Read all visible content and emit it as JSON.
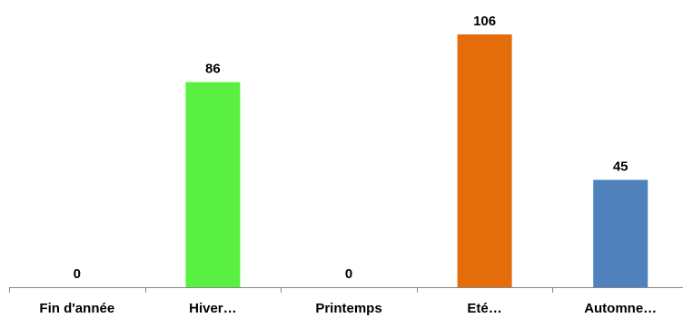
{
  "chart_data": {
    "type": "bar",
    "title": "",
    "xlabel": "",
    "ylabel": "",
    "categories": [
      "Fin d'année",
      "Hiver…",
      "Printemps",
      "Eté…",
      "Automne…"
    ],
    "values": [
      0,
      86,
      0,
      106,
      45
    ],
    "colors": [
      "#5b9bd5",
      "#5af042",
      "#5b9bd5",
      "#e46c0a",
      "#4f81bd"
    ],
    "data_labels": [
      "0",
      "86",
      "0",
      "106",
      "45"
    ],
    "ylim": [
      0,
      106
    ],
    "grid": false,
    "legend": "none"
  }
}
